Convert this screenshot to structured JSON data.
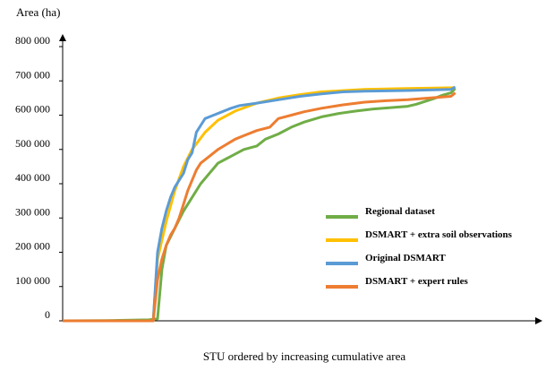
{
  "chart_data": {
    "type": "line",
    "title": "",
    "ylabel": "Area (ha)",
    "xlabel": "STU ordered by increasing cumulative area",
    "ylim": [
      0,
      800000
    ],
    "xlim": [
      0,
      100
    ],
    "grid": false,
    "legend_position": "right",
    "y_ticks": [
      {
        "value": 0,
        "label": "0"
      },
      {
        "value": 100000,
        "label": "100 000"
      },
      {
        "value": 200000,
        "label": "200 000"
      },
      {
        "value": 300000,
        "label": "300 000"
      },
      {
        "value": 400000,
        "label": "400 000"
      },
      {
        "value": 500000,
        "label": "500 000"
      },
      {
        "value": 600000,
        "label": "600 000"
      },
      {
        "value": 700000,
        "label": "700 000"
      },
      {
        "value": 800000,
        "label": "800 000"
      }
    ],
    "series": [
      {
        "name": "Regional dataset",
        "color": "#70AD47",
        "points": [
          [
            0,
            0
          ],
          [
            10,
            500
          ],
          [
            20,
            3000
          ],
          [
            22,
            6000
          ],
          [
            23,
            150000
          ],
          [
            24,
            220000
          ],
          [
            26,
            270000
          ],
          [
            28,
            320000
          ],
          [
            30,
            360000
          ],
          [
            32,
            400000
          ],
          [
            34,
            430000
          ],
          [
            36,
            460000
          ],
          [
            39,
            480000
          ],
          [
            42,
            500000
          ],
          [
            45,
            510000
          ],
          [
            47,
            530000
          ],
          [
            50,
            545000
          ],
          [
            53,
            565000
          ],
          [
            56,
            580000
          ],
          [
            60,
            595000
          ],
          [
            64,
            605000
          ],
          [
            68,
            612000
          ],
          [
            72,
            618000
          ],
          [
            76,
            622000
          ],
          [
            80,
            626000
          ],
          [
            82,
            632000
          ],
          [
            84,
            640000
          ],
          [
            86,
            648000
          ],
          [
            88,
            658000
          ],
          [
            90,
            665000
          ],
          [
            91,
            678000
          ]
        ]
      },
      {
        "name": "DSMART + extra soil observations",
        "color": "#FFC000",
        "points": [
          [
            0,
            0
          ],
          [
            21,
            0
          ],
          [
            22,
            180000
          ],
          [
            24,
            290000
          ],
          [
            26,
            380000
          ],
          [
            28,
            450000
          ],
          [
            30,
            500000
          ],
          [
            33,
            550000
          ],
          [
            36,
            585000
          ],
          [
            40,
            612000
          ],
          [
            45,
            635000
          ],
          [
            50,
            650000
          ],
          [
            55,
            660000
          ],
          [
            60,
            668000
          ],
          [
            70,
            675000
          ],
          [
            80,
            678000
          ],
          [
            91,
            680000
          ]
        ]
      },
      {
        "name": "Original DSMART",
        "color": "#5B9BD5",
        "points": [
          [
            0,
            0
          ],
          [
            21,
            0
          ],
          [
            22,
            200000
          ],
          [
            23,
            270000
          ],
          [
            24,
            320000
          ],
          [
            25,
            360000
          ],
          [
            26,
            390000
          ],
          [
            27,
            410000
          ],
          [
            28,
            430000
          ],
          [
            29,
            470000
          ],
          [
            30,
            490000
          ],
          [
            31,
            550000
          ],
          [
            32,
            570000
          ],
          [
            33,
            590000
          ],
          [
            35,
            600000
          ],
          [
            37,
            610000
          ],
          [
            39,
            620000
          ],
          [
            41,
            628000
          ],
          [
            45,
            635000
          ],
          [
            50,
            645000
          ],
          [
            55,
            655000
          ],
          [
            60,
            662000
          ],
          [
            65,
            668000
          ],
          [
            70,
            670000
          ],
          [
            80,
            672000
          ],
          [
            90,
            675000
          ],
          [
            91,
            682000
          ]
        ]
      },
      {
        "name": "DSMART + expert rules",
        "color": "#ED7D31",
        "points": [
          [
            0,
            0
          ],
          [
            21,
            0
          ],
          [
            22,
            120000
          ],
          [
            23,
            180000
          ],
          [
            24,
            220000
          ],
          [
            25,
            250000
          ],
          [
            26,
            270000
          ],
          [
            27,
            300000
          ],
          [
            28,
            340000
          ],
          [
            29,
            380000
          ],
          [
            30,
            410000
          ],
          [
            31,
            440000
          ],
          [
            32,
            460000
          ],
          [
            34,
            480000
          ],
          [
            36,
            500000
          ],
          [
            38,
            515000
          ],
          [
            40,
            530000
          ],
          [
            42,
            540000
          ],
          [
            45,
            555000
          ],
          [
            48,
            565000
          ],
          [
            50,
            590000
          ],
          [
            53,
            600000
          ],
          [
            56,
            610000
          ],
          [
            60,
            620000
          ],
          [
            65,
            630000
          ],
          [
            70,
            638000
          ],
          [
            75,
            642000
          ],
          [
            80,
            645000
          ],
          [
            85,
            650000
          ],
          [
            90,
            655000
          ],
          [
            91,
            665000
          ]
        ]
      }
    ]
  }
}
